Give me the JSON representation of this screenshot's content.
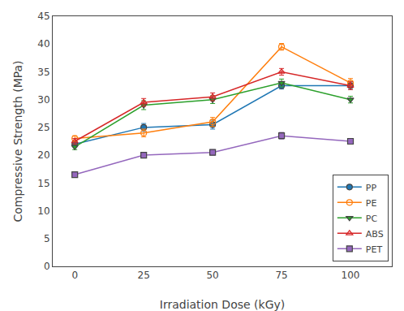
{
  "chart_data": {
    "type": "line",
    "x": [
      0,
      25,
      50,
      75,
      100
    ],
    "series": [
      {
        "name": "PP",
        "values": [
          22.0,
          25.0,
          25.5,
          32.5,
          32.5
        ],
        "yerr": [
          0.5,
          0.7,
          0.8,
          0.6,
          0.7
        ],
        "marker": "circle",
        "line_style": "solid"
      },
      {
        "name": "PE",
        "values": [
          23.0,
          24.0,
          26.0,
          39.5,
          33.0
        ],
        "yerr": [
          0.5,
          0.7,
          0.8,
          0.6,
          0.8
        ],
        "marker": "circle-open",
        "line_style": "solid"
      },
      {
        "name": "PC",
        "values": [
          21.5,
          29.0,
          30.0,
          33.0,
          30.0
        ],
        "yerr": [
          0.5,
          0.8,
          0.7,
          0.7,
          0.6
        ],
        "marker": "triangle-down",
        "line_style": "solid"
      },
      {
        "name": "ABS",
        "values": [
          22.5,
          29.5,
          30.5,
          35.0,
          32.5
        ],
        "yerr": [
          0.5,
          0.7,
          0.7,
          0.6,
          0.7
        ],
        "marker": "triangle-up-open",
        "line_style": "solid"
      },
      {
        "name": "PET",
        "values": [
          16.5,
          20.0,
          20.5,
          23.5,
          22.5
        ],
        "yerr": [
          0.5,
          0.5,
          0.5,
          0.6,
          0.5
        ],
        "marker": "square",
        "line_style": "solid"
      }
    ],
    "xlabel": "Irradiation Dose (kGy)",
    "ylabel": "Compressive Strength (MPa)",
    "xlim": [
      -8,
      115
    ],
    "xticks": [
      0,
      25,
      50,
      75,
      100
    ],
    "ylim": [
      0,
      45
    ],
    "yticks": [
      0,
      5,
      10,
      15,
      20,
      25,
      30,
      35,
      40,
      45
    ],
    "legend": "lower right",
    "grid": false
  }
}
